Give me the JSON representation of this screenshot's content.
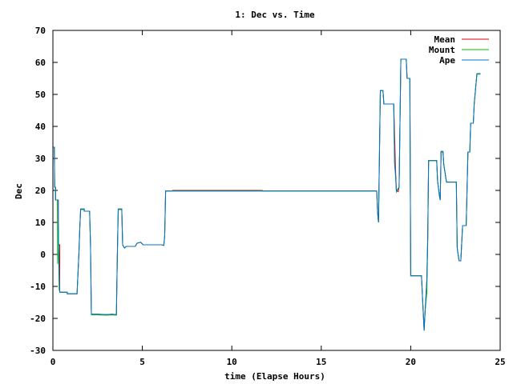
{
  "chart_data": {
    "type": "line",
    "title": "1: Dec vs. Time",
    "xlabel": "time (Elapse Hours)",
    "ylabel": "Dec",
    "xlim": [
      0,
      25
    ],
    "ylim": [
      -30,
      70
    ],
    "xticks": [
      0,
      5,
      10,
      15,
      20,
      25
    ],
    "yticks": [
      -30,
      -20,
      -10,
      0,
      10,
      20,
      30,
      40,
      50,
      60,
      70
    ],
    "grid": false,
    "legend_position": "top-right",
    "series": [
      {
        "name": "Mean",
        "color": "#e00000",
        "points": [
          [
            0.0,
            33.5
          ],
          [
            0.08,
            33.5
          ],
          [
            0.1,
            21
          ],
          [
            0.15,
            21
          ],
          [
            0.15,
            17
          ],
          [
            0.3,
            17
          ],
          [
            0.3,
            3
          ],
          [
            0.38,
            3
          ],
          [
            0.38,
            -11.8
          ],
          [
            0.8,
            -11.8
          ],
          [
            0.8,
            -12.3
          ],
          [
            1.35,
            -12.3
          ],
          [
            1.45,
            0
          ],
          [
            1.5,
            8
          ],
          [
            1.55,
            14.2
          ],
          [
            1.75,
            14.2
          ],
          [
            1.75,
            13.5
          ],
          [
            2.05,
            13.5
          ],
          [
            2.1,
            3
          ],
          [
            2.15,
            -18.7
          ],
          [
            2.5,
            -18.7
          ],
          [
            3.0,
            -18.8
          ],
          [
            3.3,
            -18.7
          ],
          [
            3.55,
            -18.8
          ],
          [
            3.6,
            0
          ],
          [
            3.65,
            14.2
          ],
          [
            3.85,
            14.2
          ],
          [
            3.9,
            3
          ],
          [
            4.0,
            2
          ],
          [
            4.1,
            2.5
          ],
          [
            4.6,
            2.5
          ],
          [
            4.7,
            3.5
          ],
          [
            4.9,
            3.8
          ],
          [
            5.05,
            3
          ],
          [
            5.5,
            3
          ],
          [
            6.1,
            3
          ],
          [
            6.2,
            2.8
          ],
          [
            6.25,
            6
          ],
          [
            6.3,
            19.8
          ],
          [
            6.65,
            19.8
          ],
          [
            6.7,
            20
          ],
          [
            11.7,
            20
          ],
          [
            11.7,
            19.8
          ],
          [
            18.1,
            19.8
          ],
          [
            18.15,
            13
          ],
          [
            18.2,
            10
          ],
          [
            18.3,
            51.2
          ],
          [
            18.45,
            51.2
          ],
          [
            18.5,
            47
          ],
          [
            19.05,
            47
          ],
          [
            19.15,
            27
          ],
          [
            19.2,
            20
          ],
          [
            19.3,
            19.6
          ],
          [
            19.35,
            21
          ],
          [
            19.45,
            61
          ],
          [
            19.75,
            61
          ],
          [
            19.8,
            55
          ],
          [
            19.95,
            55
          ],
          [
            20.0,
            -6.7
          ],
          [
            20.6,
            -6.7
          ],
          [
            20.7,
            -18
          ],
          [
            20.75,
            -23.8
          ],
          [
            20.8,
            -18
          ],
          [
            20.9,
            -8
          ],
          [
            20.95,
            5
          ],
          [
            21.0,
            29.3
          ],
          [
            21.45,
            29.3
          ],
          [
            21.5,
            23
          ],
          [
            21.6,
            18.5
          ],
          [
            21.65,
            17
          ],
          [
            21.7,
            32.2
          ],
          [
            21.8,
            32.2
          ],
          [
            21.85,
            28
          ],
          [
            22.0,
            22.6
          ],
          [
            22.55,
            22.6
          ],
          [
            22.6,
            2
          ],
          [
            22.7,
            -2
          ],
          [
            22.8,
            -2
          ],
          [
            22.9,
            9
          ],
          [
            23.1,
            9
          ],
          [
            23.2,
            32
          ],
          [
            23.3,
            32
          ],
          [
            23.35,
            41
          ],
          [
            23.5,
            41
          ],
          [
            23.55,
            47
          ],
          [
            23.7,
            56.5
          ],
          [
            23.9,
            56.5
          ]
        ]
      },
      {
        "name": "Mount",
        "color": "#00c000",
        "points": [
          [
            0.0,
            33.5
          ],
          [
            0.08,
            33.5
          ],
          [
            0.1,
            21
          ],
          [
            0.15,
            21
          ],
          [
            0.15,
            17
          ],
          [
            0.25,
            17
          ],
          [
            0.27,
            -3
          ],
          [
            0.3,
            8.5
          ],
          [
            0.35,
            -11
          ],
          [
            0.4,
            -11.8
          ],
          [
            0.8,
            -11.8
          ],
          [
            0.8,
            -12.3
          ],
          [
            1.35,
            -12.3
          ],
          [
            1.45,
            0
          ],
          [
            1.5,
            8
          ],
          [
            1.55,
            14
          ],
          [
            1.75,
            14
          ],
          [
            1.75,
            13.5
          ],
          [
            2.05,
            13.5
          ],
          [
            2.1,
            3
          ],
          [
            2.15,
            -18.9
          ],
          [
            2.5,
            -18.9
          ],
          [
            3.0,
            -19
          ],
          [
            3.3,
            -18.9
          ],
          [
            3.55,
            -19
          ],
          [
            3.6,
            0
          ],
          [
            3.65,
            14
          ],
          [
            3.85,
            14
          ],
          [
            3.9,
            3
          ],
          [
            4.0,
            2
          ],
          [
            4.1,
            2.5
          ],
          [
            4.6,
            2.5
          ],
          [
            4.7,
            3.5
          ],
          [
            4.9,
            3.8
          ],
          [
            5.05,
            3
          ],
          [
            5.5,
            3
          ],
          [
            6.1,
            3
          ],
          [
            6.2,
            2.8
          ],
          [
            6.25,
            6
          ],
          [
            6.3,
            19.8
          ],
          [
            18.1,
            19.8
          ],
          [
            18.15,
            13
          ],
          [
            18.2,
            10
          ],
          [
            18.3,
            51.2
          ],
          [
            18.45,
            51.2
          ],
          [
            18.5,
            47
          ],
          [
            19.05,
            47
          ],
          [
            19.1,
            29
          ],
          [
            19.15,
            25
          ],
          [
            19.2,
            19.5
          ],
          [
            19.35,
            21
          ],
          [
            19.45,
            61
          ],
          [
            19.75,
            61
          ],
          [
            19.8,
            55
          ],
          [
            19.95,
            55
          ],
          [
            20.0,
            -6.7
          ],
          [
            20.6,
            -6.7
          ],
          [
            20.7,
            -18
          ],
          [
            20.75,
            -23.8
          ],
          [
            20.8,
            -18
          ],
          [
            20.9,
            -12
          ],
          [
            20.95,
            3
          ],
          [
            21.0,
            29.3
          ],
          [
            21.45,
            29.3
          ],
          [
            21.5,
            23
          ],
          [
            21.6,
            18.5
          ],
          [
            21.65,
            17
          ],
          [
            21.7,
            32
          ],
          [
            21.8,
            32
          ],
          [
            21.85,
            28
          ],
          [
            22.0,
            22.6
          ],
          [
            22.55,
            22.6
          ],
          [
            22.6,
            2
          ],
          [
            22.7,
            -2
          ],
          [
            22.8,
            -2
          ],
          [
            22.9,
            9
          ],
          [
            23.1,
            9
          ],
          [
            23.2,
            32
          ],
          [
            23.3,
            32
          ],
          [
            23.35,
            41
          ],
          [
            23.5,
            41
          ],
          [
            23.55,
            47
          ],
          [
            23.7,
            56.3
          ],
          [
            23.9,
            56.3
          ]
        ]
      },
      {
        "name": "Ape",
        "color": "#0070d0",
        "points": [
          [
            0.0,
            33.5
          ],
          [
            0.08,
            33.5
          ],
          [
            0.1,
            21
          ],
          [
            0.15,
            21
          ],
          [
            0.15,
            17
          ],
          [
            0.3,
            17
          ],
          [
            0.32,
            2
          ],
          [
            0.38,
            -11.8
          ],
          [
            0.8,
            -11.8
          ],
          [
            0.8,
            -12.3
          ],
          [
            1.35,
            -12.3
          ],
          [
            1.45,
            0
          ],
          [
            1.5,
            8
          ],
          [
            1.55,
            14.2
          ],
          [
            1.75,
            14.2
          ],
          [
            1.75,
            13.5
          ],
          [
            2.05,
            13.5
          ],
          [
            2.1,
            3
          ],
          [
            2.15,
            -18.7
          ],
          [
            2.5,
            -18.7
          ],
          [
            3.0,
            -18.8
          ],
          [
            3.3,
            -18.7
          ],
          [
            3.55,
            -18.8
          ],
          [
            3.6,
            0
          ],
          [
            3.65,
            14.2
          ],
          [
            3.85,
            14.2
          ],
          [
            3.9,
            3
          ],
          [
            4.0,
            2
          ],
          [
            4.1,
            2.5
          ],
          [
            4.6,
            2.5
          ],
          [
            4.7,
            3.5
          ],
          [
            4.9,
            3.8
          ],
          [
            5.05,
            3
          ],
          [
            5.5,
            3
          ],
          [
            6.1,
            3
          ],
          [
            6.2,
            2.8
          ],
          [
            6.25,
            6
          ],
          [
            6.3,
            19.8
          ],
          [
            18.1,
            19.8
          ],
          [
            18.15,
            13
          ],
          [
            18.2,
            10
          ],
          [
            18.3,
            51.2
          ],
          [
            18.45,
            51.2
          ],
          [
            18.5,
            47
          ],
          [
            19.05,
            47
          ],
          [
            19.1,
            28
          ],
          [
            19.15,
            25
          ],
          [
            19.2,
            19.8
          ],
          [
            19.35,
            21
          ],
          [
            19.45,
            61
          ],
          [
            19.75,
            61
          ],
          [
            19.8,
            55
          ],
          [
            19.95,
            55
          ],
          [
            20.0,
            -6.7
          ],
          [
            20.6,
            -6.7
          ],
          [
            20.7,
            -18
          ],
          [
            20.75,
            -23.8
          ],
          [
            20.8,
            -18
          ],
          [
            20.9,
            -8
          ],
          [
            20.95,
            5
          ],
          [
            21.0,
            29.3
          ],
          [
            21.45,
            29.3
          ],
          [
            21.5,
            23
          ],
          [
            21.6,
            18.5
          ],
          [
            21.65,
            17
          ],
          [
            21.7,
            32.2
          ],
          [
            21.8,
            32.2
          ],
          [
            21.85,
            28
          ],
          [
            22.0,
            22.6
          ],
          [
            22.55,
            22.6
          ],
          [
            22.6,
            2
          ],
          [
            22.7,
            -2
          ],
          [
            22.8,
            -2
          ],
          [
            22.9,
            9
          ],
          [
            23.1,
            9
          ],
          [
            23.2,
            32
          ],
          [
            23.3,
            32
          ],
          [
            23.35,
            41
          ],
          [
            23.5,
            41
          ],
          [
            23.55,
            47
          ],
          [
            23.7,
            56.5
          ],
          [
            23.9,
            56.5
          ]
        ]
      }
    ]
  }
}
